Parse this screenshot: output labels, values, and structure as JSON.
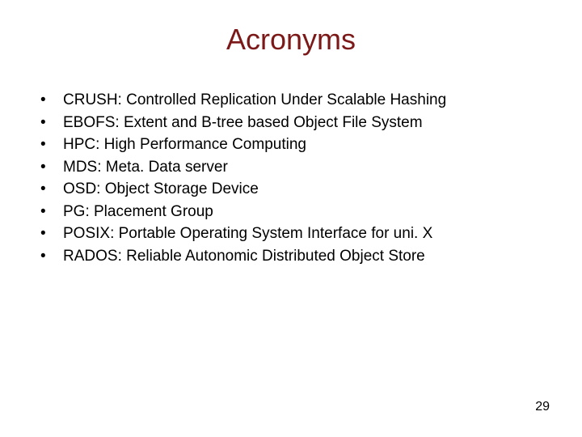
{
  "slide": {
    "title": "Acronyms",
    "title_color": "#7b1818",
    "title_fontsize": 36,
    "background_color": "#ffffff",
    "text_color": "#000000",
    "body_fontsize": 19,
    "page_number": "29",
    "bullets": [
      "CRUSH:  Controlled Replication Under Scalable Hashing",
      "EBOFS:  Extent and B-tree based Object File System",
      "HPC:  High Performance Computing",
      "MDS:  Meta. Data server",
      "OSD:  Object Storage Device",
      "PG:  Placement Group",
      "POSIX:  Portable Operating System Interface for uni. X",
      "RADOS:  Reliable Autonomic Distributed Object Store"
    ]
  }
}
